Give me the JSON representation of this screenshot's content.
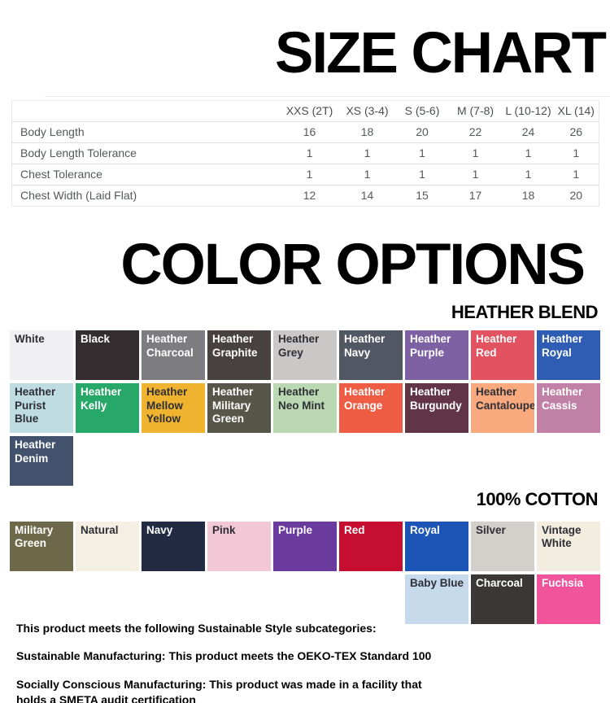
{
  "size_chart": {
    "title": "SIZE CHART",
    "columns": [
      "XXS (2T)",
      "XS (3-4)",
      "S (5-6)",
      "M (7-8)",
      "L (10-12)",
      "XL (14)"
    ],
    "rows": [
      {
        "label": "Body Length",
        "values": [
          "16",
          "18",
          "20",
          "22",
          "24",
          "26"
        ]
      },
      {
        "label": "Body Length Tolerance",
        "values": [
          "1",
          "1",
          "1",
          "1",
          "1",
          "1"
        ]
      },
      {
        "label": "Chest Tolerance",
        "values": [
          "1",
          "1",
          "1",
          "1",
          "1",
          "1"
        ]
      },
      {
        "label": "Chest Width (Laid Flat)",
        "values": [
          "12",
          "14",
          "15",
          "17",
          "18",
          "20"
        ]
      }
    ]
  },
  "color_options": {
    "title": "COLOR OPTIONS",
    "sections": [
      {
        "label": "HEATHER BLEND",
        "rows": [
          {
            "offset": 0,
            "swatches": [
              {
                "name": "White",
                "bg": "#f0f0f2",
                "fg": "#2e2e36"
              },
              {
                "name": "Black",
                "bg": "#332d2f",
                "fg": "#ffffff"
              },
              {
                "name": "Heather Charcoal",
                "bg": "#7d7c81",
                "fg": "#ffffff"
              },
              {
                "name": "Heather Graphite",
                "bg": "#474140",
                "fg": "#ffffff"
              },
              {
                "name": "Heather Grey",
                "bg": "#cac8c7",
                "fg": "#2e2e36"
              },
              {
                "name": "Heather Navy",
                "bg": "#515763",
                "fg": "#ffffff"
              },
              {
                "name": "Heather Purple",
                "bg": "#7d61a3",
                "fg": "#ffffff"
              },
              {
                "name": "Heather Red",
                "bg": "#e25261",
                "fg": "#ffffff"
              },
              {
                "name": "Heather Royal",
                "bg": "#2f5db3",
                "fg": "#ffffff"
              }
            ]
          },
          {
            "offset": 0,
            "swatches": [
              {
                "name": "Heather Purist Blue",
                "bg": "#bfdde1",
                "fg": "#2e2e36"
              },
              {
                "name": "Heather Kelly",
                "bg": "#27a768",
                "fg": "#ffffff"
              },
              {
                "name": "Heather Mellow Yellow",
                "bg": "#efb32f",
                "fg": "#2e2e36"
              },
              {
                "name": "Heather Military Green",
                "bg": "#565749",
                "fg": "#ffffff"
              },
              {
                "name": "Heather Neo Mint",
                "bg": "#bad8b1",
                "fg": "#2e2e36"
              },
              {
                "name": "Heather Orange",
                "bg": "#ee5d43",
                "fg": "#ffffff"
              },
              {
                "name": "Heather Burgundy",
                "bg": "#623546",
                "fg": "#ffffff"
              },
              {
                "name": "Heather Cantaloupe",
                "bg": "#f8a97e",
                "fg": "#2e2e36"
              },
              {
                "name": "Heather Cassis",
                "bg": "#c180a5",
                "fg": "#ffffff"
              }
            ]
          },
          {
            "offset": 0,
            "swatches": [
              {
                "name": "Heather Denim",
                "bg": "#42516c",
                "fg": "#ffffff"
              }
            ]
          }
        ]
      },
      {
        "label": "100% COTTON",
        "rows": [
          {
            "offset": 0,
            "swatches": [
              {
                "name": "Military Green",
                "bg": "#6c6849",
                "fg": "#ffffff"
              },
              {
                "name": "Natural",
                "bg": "#f4efe2",
                "fg": "#2e2e36"
              },
              {
                "name": "Navy",
                "bg": "#232a43",
                "fg": "#ffffff"
              },
              {
                "name": "Pink",
                "bg": "#f2c7d6",
                "fg": "#2e2e36"
              },
              {
                "name": "Purple",
                "bg": "#6b3a9f",
                "fg": "#ffffff"
              },
              {
                "name": "Red",
                "bg": "#c60f30",
                "fg": "#ffffff"
              },
              {
                "name": "Royal",
                "bg": "#1c55b6",
                "fg": "#ffffff"
              },
              {
                "name": "Silver",
                "bg": "#d3d0cb",
                "fg": "#2e2e36"
              },
              {
                "name": "Vintage White",
                "bg": "#f2eddf",
                "fg": "#2e2e36"
              }
            ]
          },
          {
            "offset": 6,
            "swatches": [
              {
                "name": "Baby Blue",
                "bg": "#c6daec",
                "fg": "#2e2e36"
              },
              {
                "name": "Charcoal",
                "bg": "#3b3737",
                "fg": "#ffffff"
              },
              {
                "name": "Fuchsia",
                "bg": "#f2549c",
                "fg": "#ffffff"
              }
            ]
          }
        ]
      }
    ]
  },
  "footer": {
    "paragraphs": [
      "This product meets the following Sustainable Style subcategories:",
      "Sustainable Manufacturing: This product meets the OEKO-TEX Standard 100",
      "Socially Conscious Manufacturing: This product was made in a facility that holds a SMETA audit certification"
    ]
  }
}
